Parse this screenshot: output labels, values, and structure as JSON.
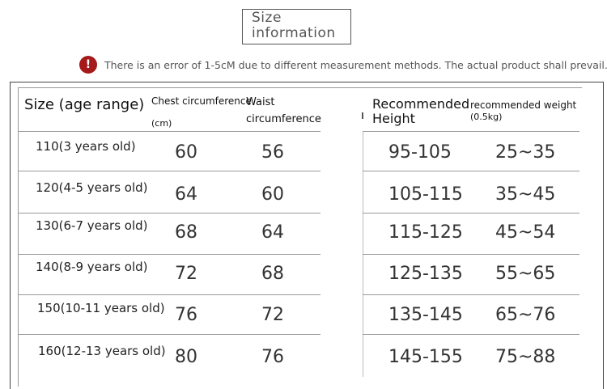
{
  "title": "Size information",
  "notice": {
    "icon": "exclamation-icon",
    "icon_glyph": "!",
    "text": "There is an error of 1-5cM due to different measurement methods. The actual product shall prevail."
  },
  "table": {
    "headers": {
      "size": "Size (age range)",
      "chest": "Chest circumference",
      "chest_unit": "(cm)",
      "waist_line1": "Waist",
      "waist_line2": "circumference",
      "height_line1": "Recommended",
      "height_line2": "Height",
      "weight": "recommended weight",
      "weight_unit": "(0.5kg)"
    },
    "rows": [
      {
        "size": "110(3 years old)",
        "chest": "60",
        "waist": "56",
        "height": "95-105",
        "weight": "25~35"
      },
      {
        "size": "120(4-5 years old)",
        "chest": "64",
        "waist": "60",
        "height": "105-115",
        "weight": "35~45"
      },
      {
        "size": "130(6-7 years old)",
        "chest": "68",
        "waist": "64",
        "height": "115-125",
        "weight": "45~54"
      },
      {
        "size": "140(8-9 years old)",
        "chest": "72",
        "waist": "68",
        "height": "125-135",
        "weight": "55~65"
      },
      {
        "size": "150(10-11 years old)",
        "chest": "76",
        "waist": "72",
        "height": "135-145",
        "weight": "65~76"
      },
      {
        "size": "160(12-13 years old)",
        "chest": "80",
        "waist": "76",
        "height": "145-155",
        "weight": "75~88"
      }
    ]
  }
}
